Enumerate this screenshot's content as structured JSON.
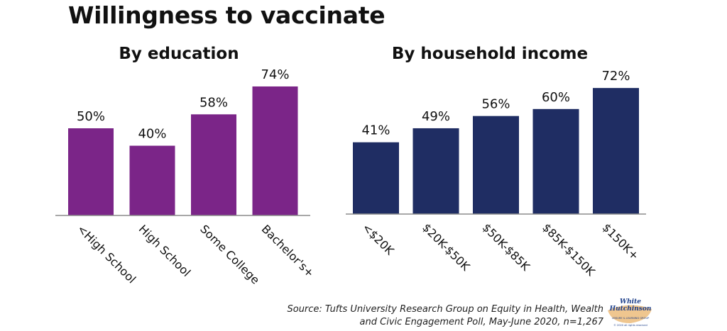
{
  "title": "Willingness to vaccinate",
  "source": {
    "line1": "Source: Tufts University Research Group on Equity in Health, Wealth",
    "line2": "and Civic Engagement Poll, May-June 2020, n=1,267"
  },
  "logo": {
    "name_line1": "White",
    "name_line2": "Hutchinson",
    "tagline": "LEISURE & LEARNING GROUP",
    "copyright": "© 2020 all rights reserved"
  },
  "chart_data": [
    {
      "type": "bar",
      "title": "By education",
      "categories": [
        "<High School",
        "High School",
        "Some College",
        "Bachelor's+"
      ],
      "values": [
        50,
        40,
        58,
        74
      ],
      "data_labels": [
        "50%",
        "40%",
        "58%",
        "74%"
      ],
      "ylim": [
        0,
        100
      ],
      "unit": "%",
      "color": "#7b2588",
      "grid": false,
      "legend": "none"
    },
    {
      "type": "bar",
      "title": "By household income",
      "categories": [
        "<$20K",
        "$20K-$50K",
        "$50K-$85K",
        "$85K-$150K",
        "$150K+"
      ],
      "values": [
        41,
        49,
        56,
        60,
        72
      ],
      "data_labels": [
        "41%",
        "49%",
        "56%",
        "60%",
        "72%"
      ],
      "ylim": [
        0,
        100
      ],
      "unit": "%",
      "color": "#1f2d63",
      "grid": false,
      "legend": "none"
    }
  ]
}
